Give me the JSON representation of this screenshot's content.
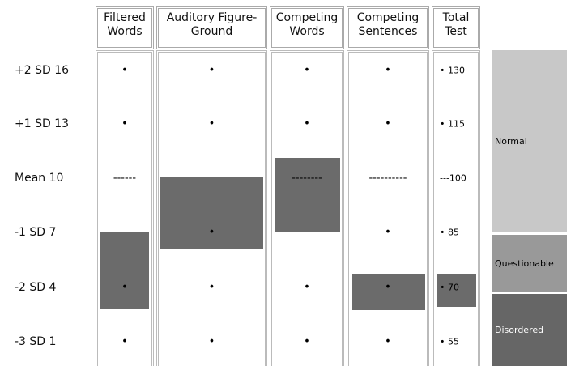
{
  "table": {
    "columns": [
      "Filtered\nWords",
      "Auditory Figure-\nGround",
      "Competing\nWords",
      "Competing\nSentences",
      "Total\nTest"
    ],
    "rows": [
      {
        "label": "+2 SD 16",
        "cells": [
          "•",
          "•",
          "•",
          "•",
          "• 130"
        ]
      },
      {
        "label": "+1 SD 13",
        "cells": [
          "•",
          "•",
          "•",
          "•",
          "• 115"
        ]
      },
      {
        "label": "Mean 10",
        "cells": [
          "------",
          null,
          "--------",
          "----------",
          "---100"
        ]
      },
      {
        "label": "-1 SD 7",
        "cells": [
          null,
          "•",
          null,
          "•",
          "• 85"
        ]
      },
      {
        "label": "-2 SD 4",
        "cells": [
          "•",
          "•",
          "•",
          "•",
          "• 70"
        ]
      },
      {
        "label": "-3 SD 1",
        "cells": [
          "•",
          "•",
          "•",
          "•",
          "• 55"
        ]
      }
    ]
  },
  "legend": [
    "Normal",
    "Questionable",
    "Disordered"
  ]
}
